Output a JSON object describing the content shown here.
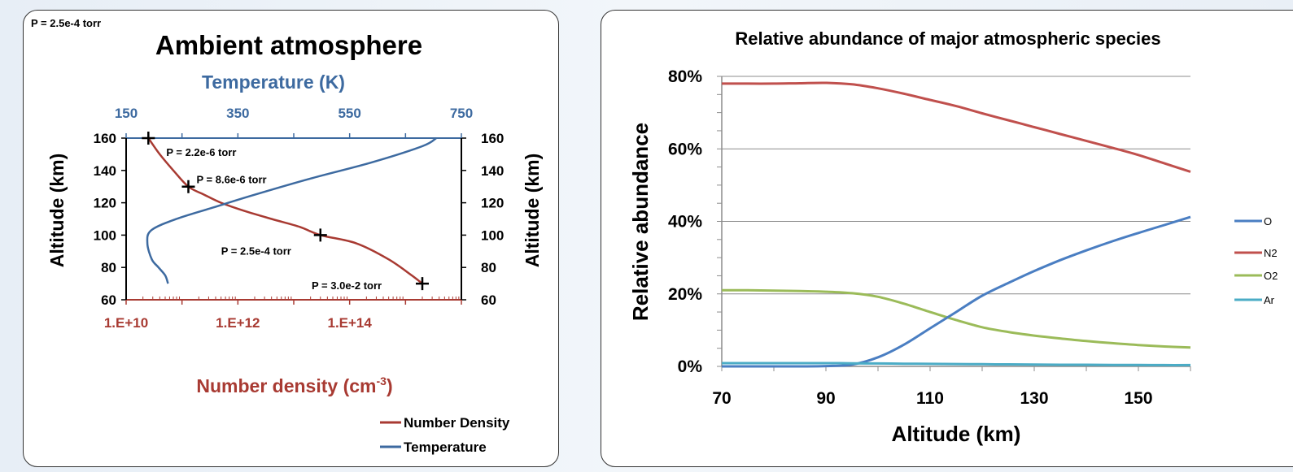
{
  "left_chart": {
    "corner_note": "P = 2.5e-4 torr",
    "title": "Ambient atmosphere",
    "top_axis_title": "Temperature (K)",
    "top_ticks": [
      "150",
      "350",
      "550",
      "750"
    ],
    "bottom_axis_title": "Number density (cm",
    "bottom_axis_title_sup": "-3",
    "bottom_axis_title_end": ")",
    "bottom_ticks": [
      "1.E+10",
      "1.E+12",
      "1.E+14"
    ],
    "left_axis_title": "Altitude (km)",
    "right_axis_title": "Altitude (km)",
    "y_ticks": [
      "60",
      "80",
      "100",
      "120",
      "140",
      "160"
    ],
    "annotations": [
      "P = 2.2e-6 torr",
      "P = 8.6e-6 torr",
      "P = 2.5e-4 torr",
      "P = 3.0e-2 torr"
    ],
    "legend": [
      "Number Density",
      "Temperature"
    ],
    "colors": {
      "density": "#a83a32",
      "temperature": "#3d6aa0"
    }
  },
  "right_chart": {
    "title": "Relative abundance of major atmospheric species",
    "ylabel": "Relative abundance",
    "xlabel": "Altitude (km)",
    "x_ticks": [
      "70",
      "90",
      "110",
      "130",
      "150"
    ],
    "y_ticks": [
      "0%",
      "20%",
      "40%",
      "60%",
      "80%"
    ],
    "legend": [
      "O",
      "N2",
      "O2",
      "Ar"
    ],
    "colors": {
      "O": "#4a7ec2",
      "N2": "#c0504d",
      "O2": "#9bbb59",
      "Ar": "#4bacc6"
    }
  },
  "chart_data": [
    {
      "type": "line",
      "title": "Ambient atmosphere",
      "x_axes": {
        "bottom": {
          "label": "Number density (cm-3)",
          "scale": "log",
          "range": [
            10000000000.0,
            1000000000000000.0
          ]
        },
        "top": {
          "label": "Temperature (K)",
          "range": [
            150,
            750
          ]
        }
      },
      "ylabel": "Altitude (km)",
      "ylim": [
        60,
        160
      ],
      "series": [
        {
          "name": "Number Density",
          "axis": "bottom",
          "points": [
            [
              2000000000000000.0,
              70
            ],
            [
              1300000000000000.0,
              75
            ],
            [
              500000000000000.0,
              85
            ],
            [
              130000000000000.0,
              95
            ],
            [
              30000000000000.0,
              100
            ],
            [
              13000000000000.0,
              105
            ],
            [
              4000000000000.0,
              110
            ],
            [
              1300000000000.0,
              115
            ],
            [
              500000000000.0,
              120
            ],
            [
              250000000000.0,
              125
            ],
            [
              130000000000.0,
              130
            ],
            [
              70000000000.0,
              140
            ],
            [
              40000000000.0,
              150
            ],
            [
              25000000000.0,
              160
            ]
          ]
        },
        {
          "name": "Temperature",
          "axis": "top",
          "points": [
            [
              225,
              70
            ],
            [
              220,
              75
            ],
            [
              208,
              80
            ],
            [
              196,
              85
            ],
            [
              188,
              95
            ],
            [
              195,
              103
            ],
            [
              240,
              110
            ],
            [
              305,
              117
            ],
            [
              380,
              125
            ],
            [
              480,
              135
            ],
            [
              590,
              145
            ],
            [
              680,
              155
            ],
            [
              705,
              160
            ]
          ]
        }
      ],
      "markers": [
        {
          "x": 25000000000.0,
          "y": 160,
          "label": "P = 2.2e-6 torr"
        },
        {
          "x": 130000000000.0,
          "y": 130,
          "label": "P = 8.6e-6 torr"
        },
        {
          "x": 30000000000000.0,
          "y": 100,
          "label": "P = 2.5e-4 torr"
        },
        {
          "x": 2000000000000000.0,
          "y": 70,
          "label": "P = 3.0e-2 torr"
        }
      ],
      "legend_position": "bottom-right"
    },
    {
      "type": "line",
      "title": "Relative abundance of major atmospheric species",
      "xlabel": "Altitude (km)",
      "ylabel": "Relative abundance",
      "xlim": [
        70,
        160
      ],
      "ylim": [
        0,
        80
      ],
      "x": [
        70,
        75,
        80,
        85,
        90,
        95,
        100,
        105,
        110,
        115,
        120,
        125,
        130,
        135,
        140,
        145,
        150,
        155,
        160
      ],
      "series": [
        {
          "name": "O",
          "values": [
            0,
            0,
            0,
            0,
            0.1,
            0.5,
            2.5,
            6,
            10.5,
            15,
            19.5,
            23,
            26.3,
            29.3,
            32,
            34.5,
            36.8,
            39,
            41.2
          ]
        },
        {
          "name": "N2",
          "values": [
            78,
            78,
            78,
            78.1,
            78.2,
            77.8,
            76.7,
            75.2,
            73.5,
            71.8,
            69.8,
            67.9,
            66,
            64.1,
            62.2,
            60.3,
            58.3,
            56,
            53.7
          ]
        },
        {
          "name": "O2",
          "values": [
            21,
            21,
            20.9,
            20.8,
            20.6,
            20.2,
            19.2,
            17.3,
            15,
            12.8,
            10.8,
            9.5,
            8.5,
            7.7,
            7,
            6.4,
            5.9,
            5.5,
            5.2
          ]
        },
        {
          "name": "Ar",
          "values": [
            0.9,
            0.9,
            0.9,
            0.9,
            0.9,
            0.85,
            0.8,
            0.75,
            0.7,
            0.65,
            0.6,
            0.55,
            0.5,
            0.45,
            0.45,
            0.4,
            0.4,
            0.35,
            0.35
          ]
        }
      ],
      "grid": true,
      "legend_position": "right"
    }
  ]
}
